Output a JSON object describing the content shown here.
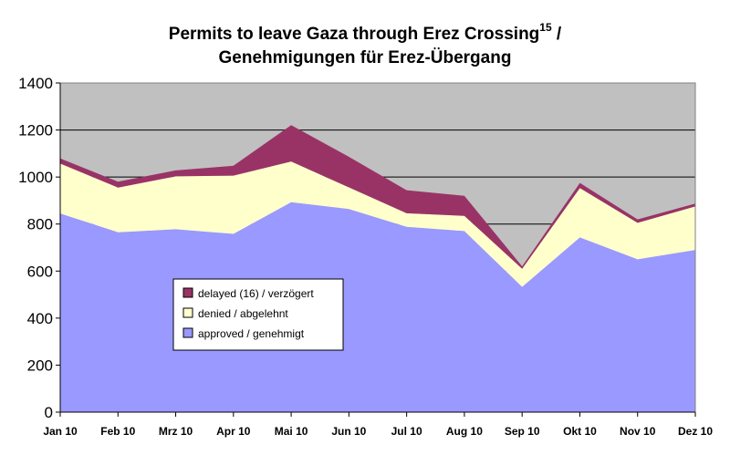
{
  "chart_data": {
    "type": "area",
    "stacked": true,
    "title_line1": "Permits to leave Gaza through Erez Crossing",
    "title_sup": "15",
    "title_line1_suffix": " /",
    "title_line2": "Genehmigungen für Erez-Übergang",
    "xlabel": "",
    "ylabel": "",
    "ylim": [
      0,
      1400
    ],
    "yticks": [
      0,
      200,
      400,
      600,
      800,
      1000,
      1200,
      1400
    ],
    "grid": true,
    "plot_background": "#c0c0c0",
    "legend_position": "left-center",
    "categories": [
      "Jan 10",
      "Feb 10",
      "Mrz 10",
      "Apr 10",
      "Mai 10",
      "Jun 10",
      "Jul 10",
      "Aug 10",
      "Sep 10",
      "Okt 10",
      "Nov 10",
      "Dez 10"
    ],
    "series": [
      {
        "name": "approved / genehmigt",
        "color": "#9999ff",
        "values": [
          845,
          765,
          778,
          758,
          893,
          864,
          788,
          770,
          533,
          743,
          650,
          690
        ]
      },
      {
        "name": "denied / abgelehnt",
        "color": "#ffffcc",
        "values": [
          212,
          190,
          225,
          248,
          173,
          92,
          58,
          65,
          77,
          210,
          155,
          185
        ]
      },
      {
        "name": "delayed (16) / verzögert",
        "color": "#993366",
        "values": [
          22,
          25,
          25,
          42,
          155,
          130,
          98,
          85,
          10,
          22,
          15,
          12
        ]
      }
    ],
    "legend_order": [
      "delayed (16) / verzögert",
      "denied / abgelehnt",
      "approved / genehmigt"
    ]
  }
}
